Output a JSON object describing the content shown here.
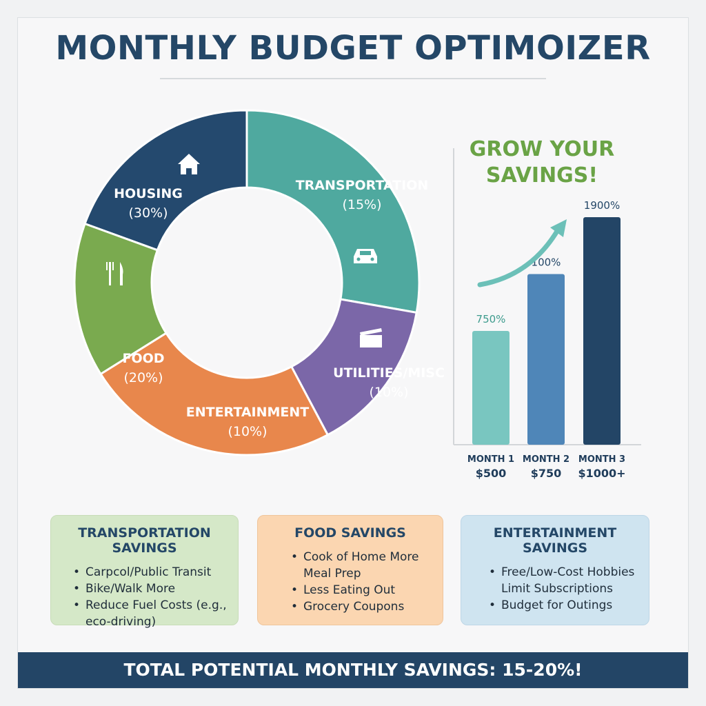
{
  "title": "MONTHLY BUDGET OPTIMOIZER",
  "chart_data": [
    {
      "type": "pie",
      "variant": "donut",
      "slices": [
        {
          "label": "HOUSING",
          "pct_label": "(30%)",
          "value": 30,
          "color": "#24496e",
          "icon": "house-icon"
        },
        {
          "label": "TRANSPORTATION",
          "pct_label": "(15%)",
          "value": 15,
          "color": "#4fa99f",
          "icon": "car-icon"
        },
        {
          "label": "UTILITIES/MISC",
          "pct_label": "(10%)",
          "value": 10,
          "color": "#7b67a8",
          "icon": "clapperboard-icon"
        },
        {
          "label": "ENTERTAINMENT",
          "pct_label": "(10%)",
          "value": 10,
          "color": "#e8874c",
          "icon": ""
        },
        {
          "label": "FOOD",
          "pct_label": "(20%)",
          "value": 20,
          "color": "#7aaa4f",
          "icon": "fork-knife-icon"
        }
      ]
    },
    {
      "type": "bar",
      "title_lines": [
        "GROW YOUR",
        "SAVINGS!"
      ],
      "categories": [
        "MONTH 1",
        "MONTH 2",
        "MONTH 3"
      ],
      "amounts": [
        "$500",
        "$750",
        "$1000+"
      ],
      "value_labels": [
        "750%",
        "100%",
        "1900%"
      ],
      "values": [
        500,
        750,
        1000
      ],
      "ylim": [
        0,
        1000
      ],
      "colors": [
        "#79c6c0",
        "#4f86b8",
        "#234566"
      ],
      "label_colors": [
        "#3d9b8d",
        "#244767",
        "#244767"
      ],
      "trend_arrow": true
    }
  ],
  "cards": [
    {
      "title": "TRANSPORTATION SAVINGS",
      "items": [
        "Carpcol/Public Transit",
        "Bike/Walk More",
        "Reduce Fuel Costs (e.g.,",
        "eco-driving)"
      ],
      "bullets": [
        true,
        true,
        true,
        false
      ]
    },
    {
      "title": "FOOD SAVINGS",
      "items": [
        "Cook of Home More",
        "Meal Prep",
        "Less Eating Out",
        "Grocery Coupons"
      ],
      "bullets": [
        true,
        false,
        true,
        true
      ]
    },
    {
      "title": "ENTERTAINMENT SAVINGS",
      "items": [
        "Free/Low-Cost Hobbies",
        "Limit Subscriptions",
        "Budget for Outings"
      ],
      "bullets": [
        true,
        false,
        true
      ]
    }
  ],
  "footer": "TOTAL POTENTIAL MONTHLY SAVINGS: 15-20%!"
}
